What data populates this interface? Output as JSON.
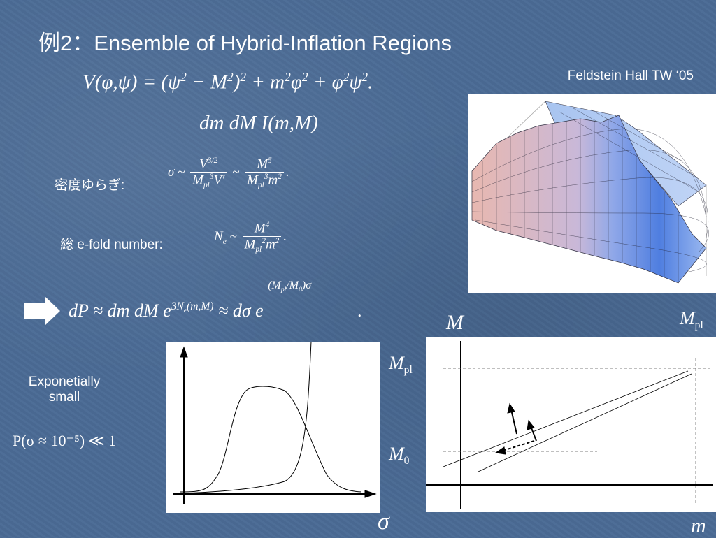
{
  "slide": {
    "title": "例2：Ensemble of Hybrid-Inflation Regions",
    "credit": "Feldstein Hall TW ‘05"
  },
  "equations": {
    "potential": "V(φ,ψ) = (ψ² − M²)² + m²φ² + φ²ψ².",
    "measure": "dm dM I(m,M)"
  },
  "labels": {
    "density_fluct": "密度ゆらぎ:",
    "efold": "総 e-fold number:",
    "exponentially": "Exponetially",
    "small": "small",
    "prob_small": "P(σ ≈ 10⁻⁵) ≪ 1"
  },
  "axes": {
    "sigma": "σ",
    "m": "m",
    "M": "M",
    "Mpl": "M",
    "Mpl_sub": "pl",
    "M0": "M",
    "M0_sub": "0"
  },
  "colors": {
    "background": "#4a6a94",
    "arrow": "#ffffff",
    "panel": "#ffffff",
    "surface_warm": "#e8b8b0",
    "surface_cool": "#5a86e0"
  }
}
